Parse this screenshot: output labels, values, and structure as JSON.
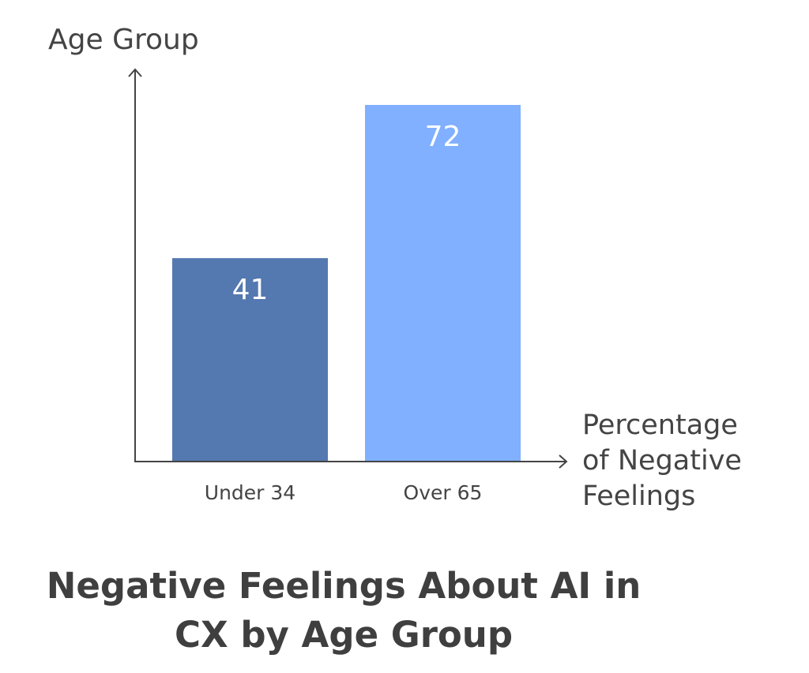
{
  "chart_data": {
    "type": "bar",
    "title": "Negative Feelings About AI in CX by Age Group",
    "title_lines": [
      "Negative Feelings About AI in",
      "CX by Age Group"
    ],
    "ylabel": "Age Group",
    "xlabel": "Percentage of Negative Feelings",
    "xlabel_lines": [
      "Percentage",
      "of Negative",
      "Feelings"
    ],
    "categories": [
      "Under 34",
      "Over 65"
    ],
    "values": [
      41,
      72
    ],
    "value_labels": [
      "41",
      "72"
    ],
    "colors": [
      "#5478b0",
      "#80b0ff"
    ],
    "ylim": [
      0,
      72
    ],
    "grid": false,
    "legend": "none"
  }
}
